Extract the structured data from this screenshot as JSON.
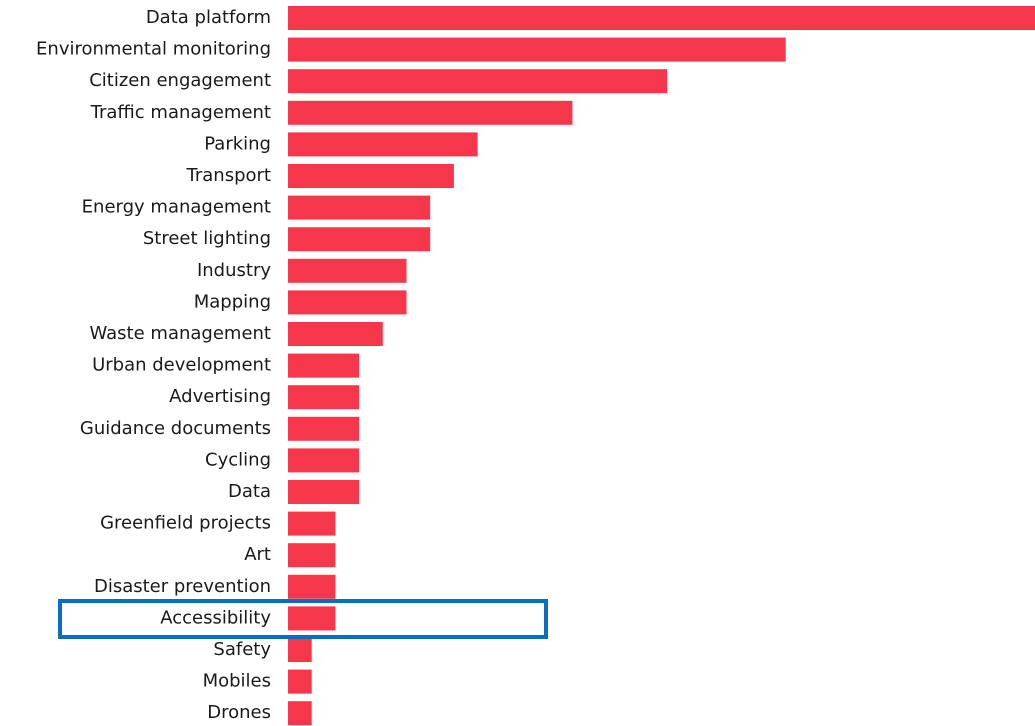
{
  "chart_data": {
    "type": "bar",
    "orientation": "horizontal",
    "categories": [
      "Data platform",
      "Environmental monitoring",
      "Citizen engagement",
      "Traffic management",
      "Parking",
      "Transport",
      "Energy management",
      "Street lighting",
      "Industry",
      "Mapping",
      "Waste management",
      "Urban development",
      "Advertising",
      "Guidance documents",
      "Cycling",
      "Data",
      "Greenfield projects",
      "Art",
      "Disaster prevention",
      "Accessibility",
      "Safety",
      "Mobiles",
      "Drones"
    ],
    "values": [
      32,
      21,
      16,
      12,
      8,
      7,
      6,
      6,
      5,
      5,
      4,
      3,
      3,
      3,
      3,
      3,
      2,
      2,
      2,
      2,
      1,
      1,
      1
    ],
    "color": "#f5364b"
  }
}
